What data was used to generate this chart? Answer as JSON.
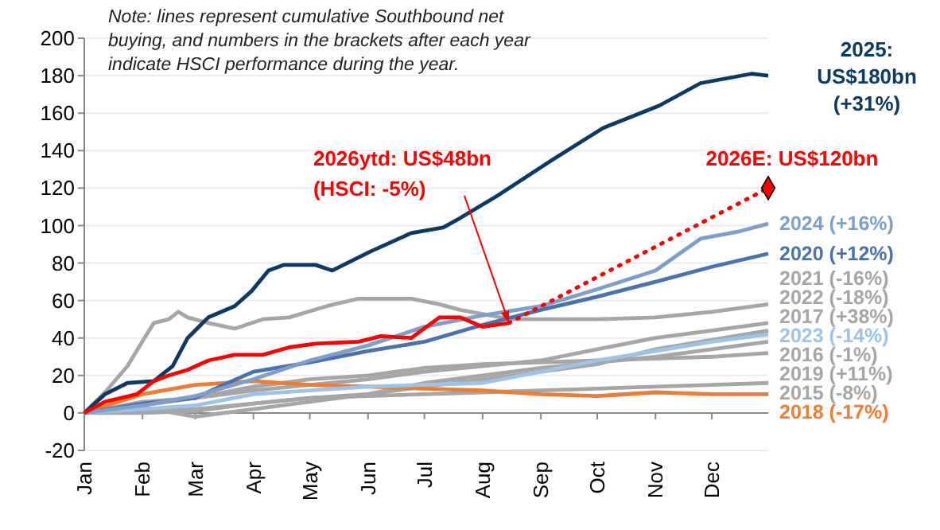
{
  "chart_data": {
    "type": "line",
    "xlim": [
      "--01-01",
      "--12-31"
    ],
    "xticks": [
      {
        "value": "--01-01",
        "label": "Jan"
      },
      {
        "value": "--02-01",
        "label": "Feb"
      },
      {
        "value": "--03-01",
        "label": "Mar"
      },
      {
        "value": "--04-01",
        "label": "Apr"
      },
      {
        "value": "--05-01",
        "label": "May"
      },
      {
        "value": "--06-01",
        "label": "Jun"
      },
      {
        "value": "--07-01",
        "label": "Jul"
      },
      {
        "value": "--08-01",
        "label": "Aug"
      },
      {
        "value": "--09-01",
        "label": "Sep"
      },
      {
        "value": "--10-01",
        "label": "Oct"
      },
      {
        "value": "--11-01",
        "label": "Nov"
      },
      {
        "value": "--12-01",
        "label": "Dec"
      }
    ],
    "ylim": [
      -20,
      200
    ],
    "yticks": [
      -20,
      0,
      20,
      40,
      60,
      80,
      100,
      120,
      140,
      160,
      180,
      200
    ],
    "grid": "y",
    "marker": "none",
    "line_style": "solid",
    "annotations": [
      "Note: lines represent cumulative Southbound net buying, and numbers in the brackets after each year indicate HSCI performance during the year.",
      {
        "text": "2026ytd: US$48bn (HSCI: -5%)",
        "x": "--08-15",
        "y": 48
      }
    ],
    "series": [
      {
        "name": "2015 (-8%)",
        "color": "#a6a6a6",
        "x": [
          "--01-01",
          "--02-01",
          "--03-01",
          "--04-01",
          "--05-01",
          "--06-01",
          "--07-01",
          "--08-01",
          "--09-01",
          "--10-01",
          "--11-01",
          "--12-01",
          "--12-31"
        ],
        "values": [
          0,
          0,
          1,
          5,
          8,
          9,
          10,
          11,
          12,
          13,
          14,
          15,
          16
        ]
      },
      {
        "name": "2016 (-1%)",
        "color": "#a6a6a6",
        "x": [
          "--01-01",
          "--02-01",
          "--03-01",
          "--04-01",
          "--05-01",
          "--06-01",
          "--07-01",
          "--08-01",
          "--09-01",
          "--10-01",
          "--11-01",
          "--12-01",
          "--12-31"
        ],
        "values": [
          0,
          3,
          -2,
          2,
          6,
          10,
          16,
          20,
          24,
          27,
          30,
          34,
          38
        ]
      },
      {
        "name": "2017 (+38%)",
        "color": "#a6a6a6",
        "x": [
          "--01-01",
          "--02-01",
          "--03-01",
          "--04-01",
          "--05-01",
          "--06-01",
          "--07-01",
          "--08-01",
          "--09-01",
          "--10-01",
          "--11-01",
          "--12-01",
          "--12-31"
        ],
        "values": [
          0,
          1,
          2,
          5,
          8,
          10,
          14,
          18,
          22,
          26,
          34,
          39,
          44
        ]
      },
      {
        "name": "2019 (+11%)",
        "color": "#a6a6a6",
        "x": [
          "--01-01",
          "--02-01",
          "--03-01",
          "--04-01",
          "--05-01",
          "--06-01",
          "--07-01",
          "--08-01",
          "--09-01",
          "--10-01",
          "--11-01",
          "--12-01",
          "--12-31"
        ],
        "values": [
          0,
          4,
          8,
          14,
          18,
          20,
          24,
          26,
          27,
          28,
          29,
          30,
          32
        ]
      },
      {
        "name": "2022 (-18%)",
        "color": "#a6a6a6",
        "x": [
          "--01-01",
          "--02-01",
          "--03-01",
          "--04-01",
          "--05-01",
          "--06-01",
          "--07-01",
          "--08-01",
          "--09-01",
          "--10-01",
          "--11-01",
          "--12-01",
          "--12-31"
        ],
        "values": [
          0,
          6,
          8,
          12,
          15,
          18,
          22,
          25,
          28,
          34,
          40,
          44,
          48
        ]
      },
      {
        "name": "2021 (-16%)",
        "color": "#a6a6a6",
        "x": [
          "--01-01",
          "--01-12",
          "--01-24",
          "--02-02",
          "--02-07",
          "--02-15",
          "--02-20",
          "--02-25",
          "--03-08",
          "--03-22",
          "--04-06",
          "--04-20",
          "--05-10",
          "--05-27",
          "--06-24",
          "--07-09",
          "--07-20",
          "--08-16",
          "--10-01",
          "--11-01",
          "--12-01",
          "--12-31"
        ],
        "values": [
          0,
          11,
          25,
          40,
          48,
          50,
          54,
          51,
          48,
          45,
          50,
          51,
          57,
          61,
          61,
          58,
          55,
          50,
          50,
          51,
          54,
          58
        ]
      },
      {
        "name": "2018 (-17%)",
        "color": "#ed7d31",
        "x": [
          "--01-01",
          "--01-16",
          "--02-01",
          "--03-01",
          "--04-01",
          "--05-01",
          "--06-01",
          "--07-01",
          "--08-01",
          "--09-01",
          "--10-01",
          "--11-01",
          "--12-01",
          "--12-31"
        ],
        "values": [
          0,
          5,
          10,
          15,
          17,
          15,
          14,
          13,
          12,
          10,
          9,
          11,
          10,
          10
        ]
      },
      {
        "name": "2023 (-14%)",
        "color": "#9dc3e6",
        "x": [
          "--01-01",
          "--02-01",
          "--03-01",
          "--04-01",
          "--05-01",
          "--06-01",
          "--07-01",
          "--08-01",
          "--09-01",
          "--10-01",
          "--11-01",
          "--12-01",
          "--12-31"
        ],
        "values": [
          0,
          2,
          4,
          10,
          12,
          14,
          15,
          16,
          22,
          28,
          33,
          38,
          42
        ]
      },
      {
        "name": "2020 (+12%)",
        "color": "#4a72ac",
        "x": [
          "--01-01",
          "--02-01",
          "--03-01",
          "--03-16",
          "--04-01",
          "--05-01",
          "--06-01",
          "--07-01",
          "--08-01",
          "--09-01",
          "--10-01",
          "--11-01",
          "--12-01",
          "--12-31"
        ],
        "values": [
          0,
          5,
          8,
          15,
          22,
          27,
          33,
          38,
          47,
          55,
          62,
          70,
          78,
          85
        ]
      },
      {
        "name": "2024 (+16%)",
        "color": "#7f9fcb",
        "x": [
          "--01-01",
          "--02-01",
          "--03-01",
          "--04-01",
          "--05-01",
          "--06-01",
          "--07-01",
          "--08-01",
          "--09-01",
          "--10-01",
          "--11-01",
          "--11-25",
          "--12-16",
          "--12-31"
        ],
        "values": [
          0,
          4,
          9,
          18,
          28,
          36,
          46,
          52,
          57,
          66,
          76,
          93,
          97,
          101
        ]
      },
      {
        "name": "2025: US$180bn (+31%)",
        "color": "#0d3a62",
        "x": [
          "--01-01",
          "--01-12",
          "--01-24",
          "--02-07",
          "--02-17",
          "--02-25",
          "--03-08",
          "--03-22",
          "--03-31",
          "--04-09",
          "--04-17",
          "--05-04",
          "--05-13",
          "--06-02",
          "--06-24",
          "--07-11",
          "--07-20",
          "--08-09",
          "--09-07",
          "--10-04",
          "--11-03",
          "--11-25",
          "--12-22",
          "--12-31"
        ],
        "values": [
          0,
          10,
          16,
          17,
          25,
          40,
          51,
          57,
          65,
          76,
          79,
          79,
          76,
          86,
          96,
          99,
          104,
          116,
          135,
          152,
          164,
          176,
          181,
          180
        ]
      },
      {
        "color": "#ff0000",
        "x": [
          "--01-01",
          "--01-12",
          "--01-29",
          "--02-07",
          "--02-15",
          "--02-25",
          "--03-08",
          "--03-22",
          "--04-06",
          "--04-20",
          "--05-04",
          "--05-27",
          "--06-08",
          "--06-24",
          "--07-09",
          "--07-20",
          "--08-01",
          "--08-15"
        ],
        "values": [
          0,
          6,
          10,
          17,
          20,
          23,
          28,
          31,
          31,
          35,
          37,
          38,
          41,
          40,
          51,
          51,
          46,
          48
        ]
      },
      {
        "name": "2026E: US$120bn",
        "color": "#ff0000",
        "line_style": "dotted",
        "x": [
          "--08-15",
          "--12-31"
        ],
        "values": [
          48,
          120
        ]
      },
      {
        "type": "scatter",
        "marker": "diamond",
        "color": "#ff0000",
        "x": [
          "--12-31"
        ],
        "values": [
          120
        ]
      }
    ]
  }
}
